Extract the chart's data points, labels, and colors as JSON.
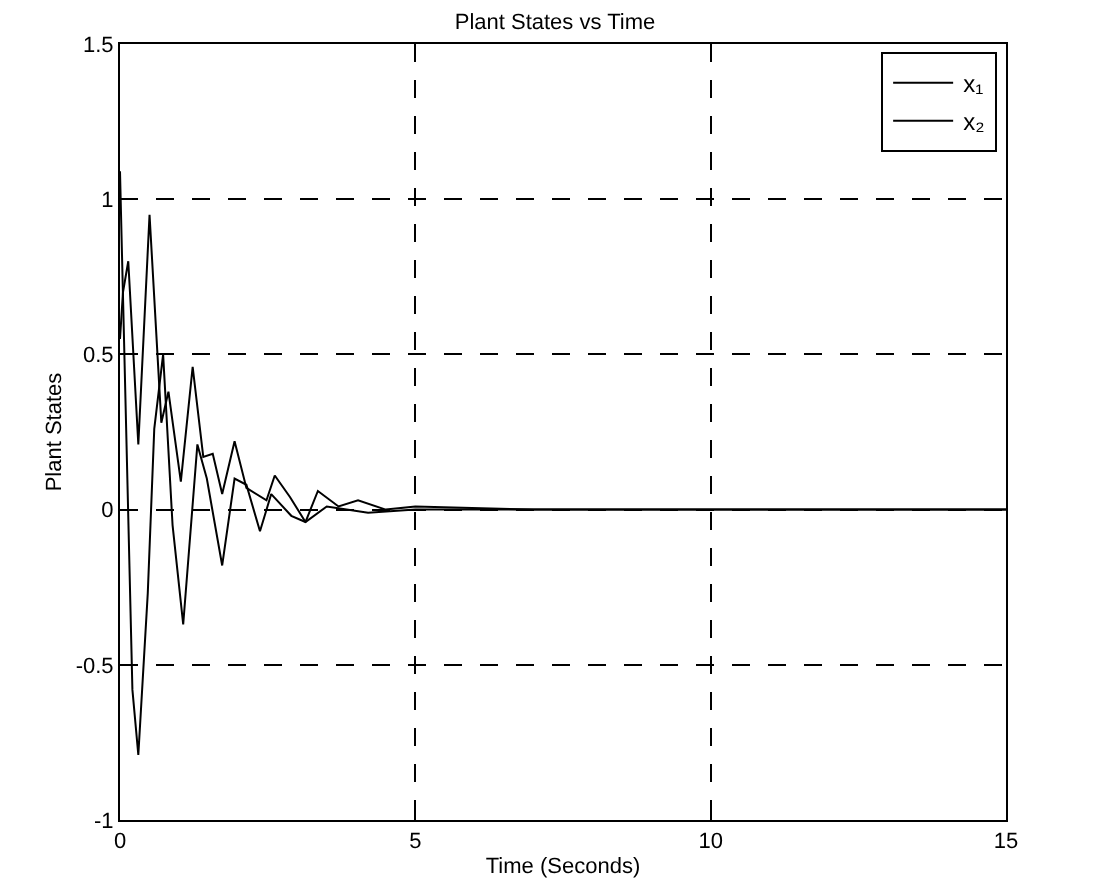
{
  "chart_data": {
    "type": "line",
    "title": "Plant States vs Time",
    "xlabel": "Time (Seconds)",
    "ylabel": "Plant States",
    "xlim": [
      0,
      15
    ],
    "xticks": [
      0,
      5,
      10,
      15
    ],
    "ylim": [
      -1,
      1.5
    ],
    "yticks": [
      -1,
      -0.5,
      0,
      0.5,
      1,
      1.5
    ],
    "grid": true,
    "legend": "top right",
    "line_style": "solid",
    "marker": "none",
    "series": [
      {
        "name": "x₁",
        "color": "#000000",
        "x": [
          0,
          0.05,
          0.14,
          0.31,
          0.5,
          0.7,
          0.82,
          1.03,
          1.23,
          1.41,
          1.57,
          1.73,
          1.94,
          2.14,
          2.48,
          2.62,
          2.88,
          3.14,
          3.35,
          3.7,
          4.03,
          4.5,
          5,
          7,
          10,
          15
        ],
        "values": [
          0.55,
          0.7,
          0.8,
          0.21,
          0.95,
          0.28,
          0.38,
          0.09,
          0.46,
          0.17,
          0.18,
          0.05,
          0.22,
          0.07,
          0.03,
          0.11,
          0.04,
          -0.04,
          0.06,
          0.01,
          0.03,
          0.0,
          0.01,
          0,
          0,
          0
        ]
      },
      {
        "name": "x₂",
        "color": "#000000",
        "x": [
          0,
          0.21,
          0.31,
          0.47,
          0.58,
          0.73,
          0.89,
          1.07,
          1.31,
          1.47,
          1.73,
          1.94,
          2.14,
          2.37,
          2.56,
          2.9,
          3.14,
          3.5,
          4.2,
          5,
          7,
          10,
          15
        ],
        "values": [
          1.09,
          -0.58,
          -0.79,
          -0.27,
          0.26,
          0.5,
          -0.05,
          -0.37,
          0.21,
          0.1,
          -0.18,
          0.1,
          0.08,
          -0.07,
          0.05,
          -0.02,
          -0.04,
          0.01,
          -0.01,
          0.0,
          0,
          0,
          0
        ]
      }
    ]
  }
}
